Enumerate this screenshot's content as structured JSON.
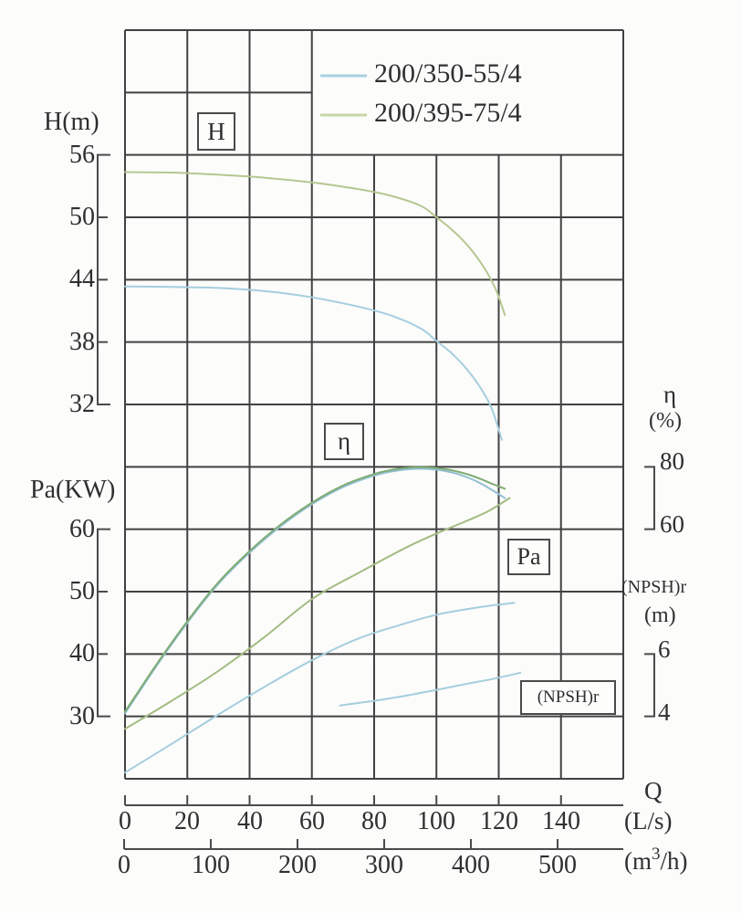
{
  "legend": {
    "items": [
      {
        "label": "200/350-55/4",
        "color": "#a9d1e2"
      },
      {
        "label": "200/395-75/4",
        "color": "#c5d6a4"
      }
    ]
  },
  "axes": {
    "h": {
      "title": "H(m)",
      "ticks": [
        56,
        50,
        44,
        38,
        32
      ]
    },
    "pa": {
      "title": "Pa(KW)",
      "ticks": [
        60,
        50,
        40,
        30
      ]
    },
    "eta": {
      "title": "η",
      "unit": "(%)",
      "ticks": [
        80,
        60
      ]
    },
    "npshr": {
      "title": "(NPSH)r",
      "unit": "(m)",
      "ticks": [
        6,
        4
      ]
    },
    "q_ls": {
      "title": "Q",
      "unit": "(L/s)",
      "ticks": [
        0,
        20,
        40,
        60,
        80,
        100,
        120,
        140
      ]
    },
    "q_m3h": {
      "unit_parts": [
        "(m",
        "3",
        "/h)"
      ],
      "ticks": [
        0,
        100,
        200,
        300,
        400,
        500
      ]
    }
  },
  "boxes": {
    "h": "H",
    "eta": "η",
    "pa": "Pa",
    "npshr": "(NPSH)r"
  },
  "chart_data": {
    "type": "line",
    "title": "",
    "x": {
      "label": "Q",
      "unit": "L/s",
      "range": [
        0,
        160
      ],
      "secondary_unit": "m3/h",
      "secondary_range": [
        0,
        576
      ]
    },
    "y_axes": [
      {
        "id": "H",
        "label": "H (m)",
        "range_shown": [
          32,
          56
        ],
        "side": "left"
      },
      {
        "id": "pa",
        "label": "Pa (KW)",
        "range_shown": [
          30,
          60
        ],
        "side": "left"
      },
      {
        "id": "eta",
        "label": "η (%)",
        "range_shown": [
          60,
          80
        ],
        "side": "right"
      },
      {
        "id": "npshr",
        "label": "(NPSH)r (m)",
        "range_shown": [
          4,
          6
        ],
        "side": "right"
      }
    ],
    "grid": true,
    "series": [
      {
        "name": "H 200/350-55/4",
        "model": "200/350-55/4",
        "axis": "H",
        "color": "#a5cede",
        "points": [
          [
            0,
            43.35
          ],
          [
            15,
            43.3
          ],
          [
            30,
            43.2
          ],
          [
            45,
            42.9
          ],
          [
            60,
            42.3
          ],
          [
            75,
            41.4
          ],
          [
            85,
            40.6
          ],
          [
            95,
            39.3
          ],
          [
            100,
            38.1
          ],
          [
            105,
            36.9
          ],
          [
            110,
            35.3
          ],
          [
            115,
            33.2
          ],
          [
            118,
            31.4
          ],
          [
            121,
            28.6
          ]
        ]
      },
      {
        "name": "H 200/395-75/4",
        "model": "200/395-75/4",
        "axis": "H",
        "color": "#b5c791",
        "points": [
          [
            0,
            54.35
          ],
          [
            15,
            54.3
          ],
          [
            30,
            54.1
          ],
          [
            45,
            53.8
          ],
          [
            60,
            53.35
          ],
          [
            75,
            52.7
          ],
          [
            85,
            52.1
          ],
          [
            95,
            51.1
          ],
          [
            100,
            50.0
          ],
          [
            105,
            48.8
          ],
          [
            110,
            47.3
          ],
          [
            115,
            45.3
          ],
          [
            119,
            43.1
          ],
          [
            122,
            40.6
          ]
        ]
      },
      {
        "name": "η 200/350-55/4",
        "model": "200/350-55/4",
        "axis": "eta",
        "color": "#93bfd2",
        "points": [
          [
            0,
            1
          ],
          [
            10,
            16
          ],
          [
            20,
            30
          ],
          [
            30,
            42.5
          ],
          [
            40,
            52.5
          ],
          [
            50,
            61
          ],
          [
            60,
            68
          ],
          [
            70,
            73.5
          ],
          [
            80,
            77.2
          ],
          [
            88,
            78.9
          ],
          [
            95,
            79.4
          ],
          [
            100,
            79.1
          ],
          [
            105,
            78.2
          ],
          [
            110,
            76.6
          ],
          [
            114,
            74.8
          ],
          [
            118,
            72.5
          ],
          [
            122,
            70.0
          ]
        ]
      },
      {
        "name": "η 200/395-75/4",
        "model": "200/395-75/4",
        "axis": "eta",
        "color": "#7fab74",
        "points": [
          [
            0,
            1.5
          ],
          [
            10,
            16.5
          ],
          [
            20,
            30.5
          ],
          [
            30,
            43
          ],
          [
            40,
            53
          ],
          [
            50,
            61.5
          ],
          [
            60,
            68.5
          ],
          [
            70,
            74
          ],
          [
            80,
            77.7
          ],
          [
            88,
            79.4
          ],
          [
            95,
            79.9
          ],
          [
            100,
            79.6
          ],
          [
            105,
            78.9
          ],
          [
            110,
            77.6
          ],
          [
            114,
            76.2
          ],
          [
            118,
            74.5
          ],
          [
            122,
            73.0
          ]
        ]
      },
      {
        "name": "Pa 200/395-75/4",
        "model": "200/395-75/4",
        "axis": "pa",
        "color": "#a3bc82",
        "points": [
          [
            0,
            28
          ],
          [
            15,
            32.5
          ],
          [
            30,
            37.3
          ],
          [
            45,
            42.8
          ],
          [
            60,
            48.8
          ],
          [
            75,
            53
          ],
          [
            90,
            57
          ],
          [
            100,
            59.3
          ],
          [
            110,
            61.4
          ],
          [
            117,
            63
          ],
          [
            123.5,
            65
          ]
        ]
      },
      {
        "name": "Pa 200/350-55/4",
        "model": "200/350-55/4",
        "axis": "pa",
        "color": "#a5cede",
        "points": [
          [
            0,
            21
          ],
          [
            15,
            25.6
          ],
          [
            30,
            30.3
          ],
          [
            45,
            34.8
          ],
          [
            60,
            39
          ],
          [
            75,
            42.5
          ],
          [
            90,
            44.9
          ],
          [
            100,
            46.3
          ],
          [
            110,
            47.2
          ],
          [
            118,
            47.8
          ],
          [
            125,
            48.2
          ]
        ]
      },
      {
        "name": "(NPSH)r 200/350-55/4",
        "model": "200/350-55/4",
        "axis": "npshr",
        "color": "#a5cede",
        "points": [
          [
            69,
            4.35
          ],
          [
            80,
            4.5
          ],
          [
            90,
            4.66
          ],
          [
            100,
            4.85
          ],
          [
            110,
            5.05
          ],
          [
            118,
            5.2
          ],
          [
            127,
            5.4
          ]
        ]
      }
    ]
  }
}
